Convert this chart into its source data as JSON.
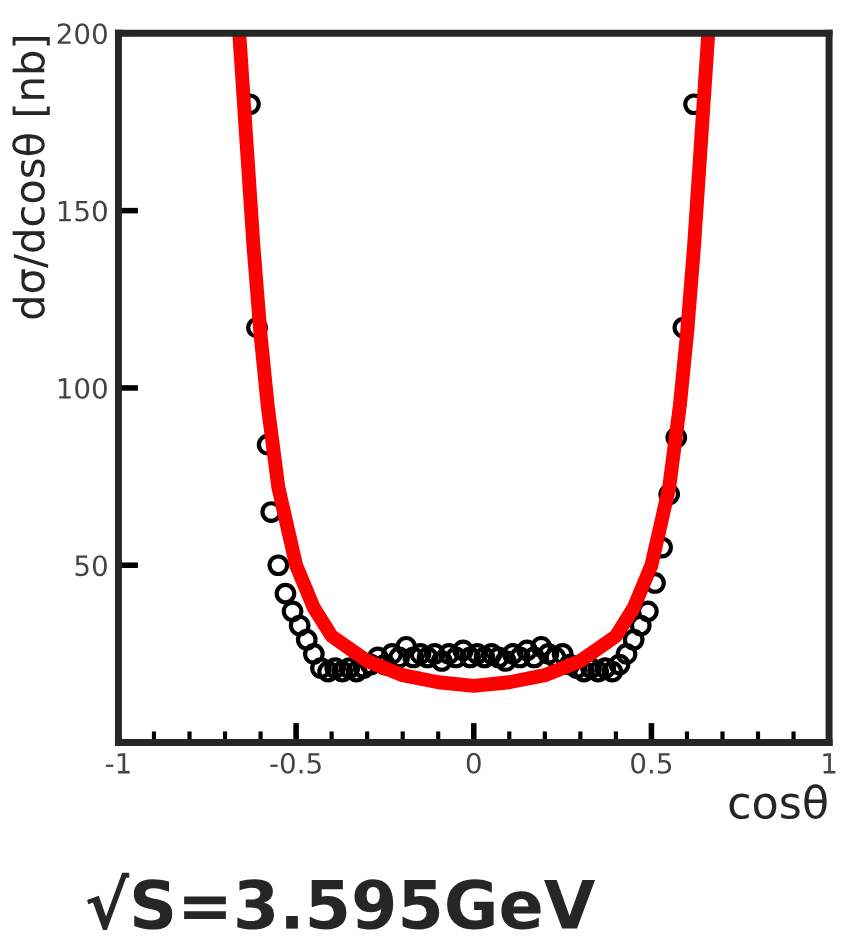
{
  "chart_data": {
    "type": "scatter",
    "xlabel": "cosθ",
    "ylabel": "dσ/dcosθ [nb]",
    "annotations": [
      "√S=3.595GeV"
    ],
    "xlim": [
      -1,
      1
    ],
    "xticks": [
      -1,
      -0.5,
      0,
      0.5,
      1
    ],
    "ylim": [
      0,
      200
    ],
    "yticks": [
      50,
      100,
      150,
      200
    ],
    "grid": false,
    "series": [
      {
        "marker": "circle",
        "color": "#000000",
        "x": [
          -0.63,
          -0.61,
          -0.58,
          -0.57,
          -0.55,
          -0.53,
          -0.51,
          -0.49,
          -0.47,
          -0.45,
          -0.43,
          -0.41,
          -0.39,
          -0.37,
          -0.35,
          -0.33,
          -0.31,
          -0.29,
          -0.27,
          -0.25,
          -0.23,
          -0.21,
          -0.19,
          -0.17,
          -0.15,
          -0.13,
          -0.11,
          -0.09,
          -0.07,
          -0.05,
          -0.03,
          -0.01,
          0.01,
          0.03,
          0.05,
          0.07,
          0.09,
          0.11,
          0.13,
          0.15,
          0.17,
          0.19,
          0.21,
          0.23,
          0.25,
          0.27,
          0.29,
          0.31,
          0.33,
          0.35,
          0.37,
          0.39,
          0.41,
          0.43,
          0.45,
          0.47,
          0.49,
          0.51,
          0.53,
          0.55,
          0.57,
          0.59,
          0.62
        ],
        "values": [
          180,
          117,
          84,
          65,
          50,
          42,
          37,
          33,
          29,
          25,
          21,
          20,
          21,
          20,
          21,
          20,
          21,
          22,
          24,
          22,
          25,
          24,
          27,
          24,
          25,
          24,
          25,
          23,
          25,
          24,
          26,
          24,
          25,
          24,
          25,
          24,
          23,
          25,
          24,
          26,
          24,
          27,
          25,
          24,
          25,
          22,
          21,
          20,
          21,
          20,
          21,
          20,
          22,
          25,
          29,
          33,
          37,
          45,
          55,
          70,
          86,
          117,
          180
        ]
      },
      {
        "type": "line",
        "color": "#ff0000",
        "marker": "none",
        "line_style": "solid",
        "x": [
          -0.66,
          -0.64,
          -0.62,
          -0.6,
          -0.58,
          -0.55,
          -0.5,
          -0.45,
          -0.4,
          -0.3,
          -0.2,
          -0.1,
          0,
          0.1,
          0.2,
          0.3,
          0.4,
          0.45,
          0.5,
          0.55,
          0.58,
          0.6,
          0.62,
          0.64,
          0.66
        ],
        "values": [
          200,
          170,
          140,
          115,
          95,
          72,
          50,
          38,
          30,
          23,
          19,
          17,
          16,
          17,
          19,
          23,
          30,
          38,
          50,
          72,
          95,
          115,
          140,
          170,
          200
        ]
      }
    ]
  }
}
